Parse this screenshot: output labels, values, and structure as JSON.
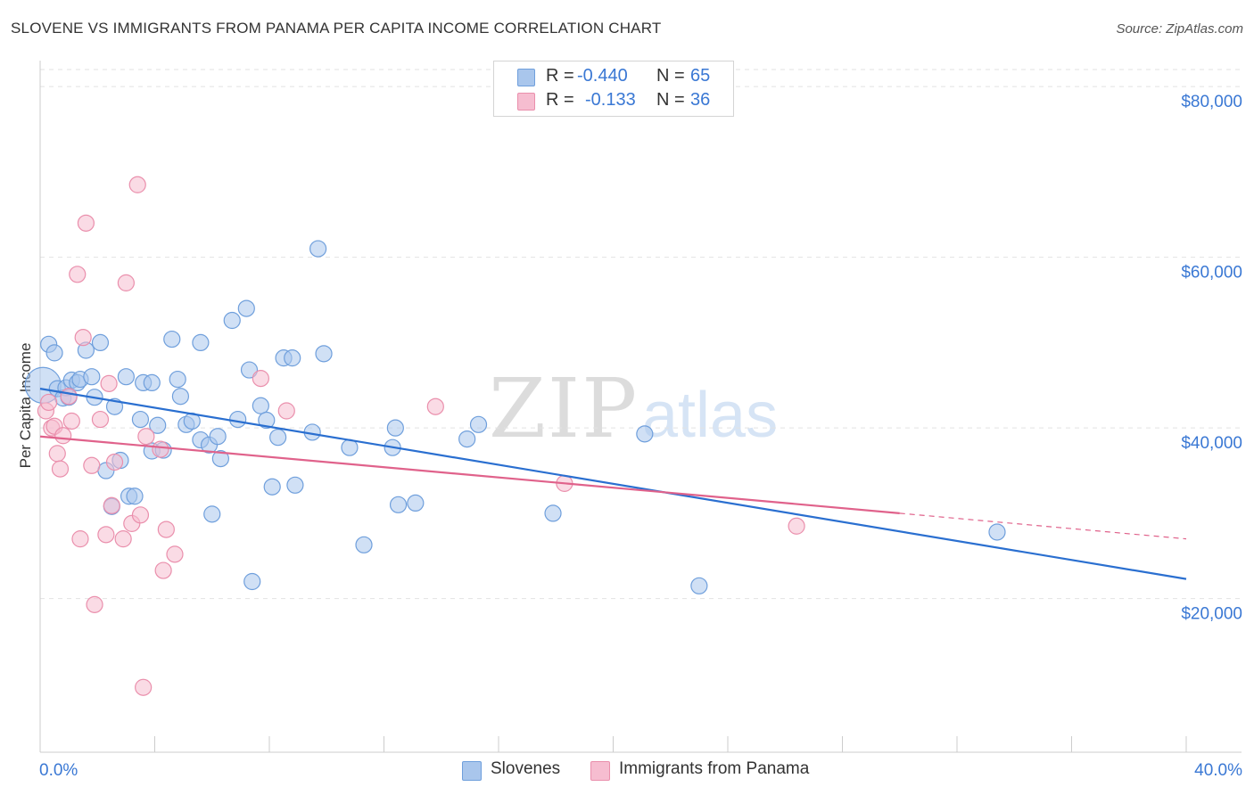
{
  "header": {
    "title": "SLOVENE VS IMMIGRANTS FROM PANAMA PER CAPITA INCOME CORRELATION CHART",
    "source": "Source: ZipAtlas.com"
  },
  "watermark": {
    "zip": "ZIP",
    "atlas": "atlas"
  },
  "legend": {
    "rows": [
      {
        "r_label": "R =",
        "r_value": "-0.440",
        "n_label": "N =",
        "n_value": "65"
      },
      {
        "r_label": "R =",
        "r_value": "-0.133",
        "n_label": "N =",
        "n_value": "36"
      }
    ]
  },
  "bottom_legend": {
    "items": [
      {
        "label": "Slovenes"
      },
      {
        "label": "Immigrants from Panama"
      }
    ]
  },
  "colors": {
    "blue_fill": "#a9c6ec",
    "blue_stroke": "#6f9fdc",
    "blue_line": "#2a6fd0",
    "pink_fill": "#f6bdd0",
    "pink_stroke": "#ea8fac",
    "pink_line": "#e0628b",
    "tick_label": "#3a78d4",
    "grid": "#e2e2e2"
  },
  "chart_data": {
    "type": "scatter",
    "title": "SLOVENE VS IMMIGRANTS FROM PANAMA PER CAPITA INCOME CORRELATION CHART",
    "xlabel": "",
    "ylabel": "Per Capita Income",
    "xlim": [
      0,
      40
    ],
    "ylim": [
      2000,
      82000
    ],
    "x_tick_labels": [
      "0.0%",
      "40.0%"
    ],
    "y_ticks": [
      {
        "value": 20000,
        "label": "$20,000"
      },
      {
        "value": 40000,
        "label": "$40,000"
      },
      {
        "value": 60000,
        "label": "$60,000"
      },
      {
        "value": 80000,
        "label": "$80,000"
      }
    ],
    "grid": true,
    "legend_position": "top-center",
    "series": [
      {
        "name": "Slovenes",
        "R": -0.44,
        "N": 65,
        "trend": {
          "x0": 0,
          "y0": 44600,
          "x1": 40,
          "y1": 22300
        },
        "points": [
          [
            0.1,
            45000
          ],
          [
            0.3,
            49800
          ],
          [
            0.5,
            48800
          ],
          [
            0.6,
            44600
          ],
          [
            0.8,
            43500
          ],
          [
            0.9,
            44700
          ],
          [
            1.1,
            45600
          ],
          [
            1.3,
            45300
          ],
          [
            1.4,
            45700
          ],
          [
            1.6,
            49100
          ],
          [
            1.8,
            46000
          ],
          [
            1.9,
            43600
          ],
          [
            2.1,
            50000
          ],
          [
            2.3,
            35000
          ],
          [
            2.6,
            42500
          ],
          [
            2.8,
            36200
          ],
          [
            3.0,
            46000
          ],
          [
            3.1,
            32000
          ],
          [
            3.3,
            32000
          ],
          [
            3.5,
            41000
          ],
          [
            3.6,
            45300
          ],
          [
            3.9,
            45300
          ],
          [
            3.9,
            37300
          ],
          [
            4.1,
            40300
          ],
          [
            4.3,
            37400
          ],
          [
            4.6,
            50400
          ],
          [
            4.8,
            45700
          ],
          [
            4.9,
            43700
          ],
          [
            5.1,
            40400
          ],
          [
            5.3,
            40800
          ],
          [
            5.6,
            50000
          ],
          [
            5.6,
            38600
          ],
          [
            5.9,
            38000
          ],
          [
            6.0,
            29900
          ],
          [
            6.2,
            39000
          ],
          [
            6.3,
            36400
          ],
          [
            6.7,
            52600
          ],
          [
            6.9,
            41000
          ],
          [
            7.2,
            54000
          ],
          [
            7.3,
            46800
          ],
          [
            7.4,
            22000
          ],
          [
            7.7,
            42600
          ],
          [
            7.9,
            40900
          ],
          [
            8.1,
            33100
          ],
          [
            8.3,
            38900
          ],
          [
            8.5,
            48200
          ],
          [
            8.8,
            48200
          ],
          [
            8.9,
            33300
          ],
          [
            9.5,
            39500
          ],
          [
            9.7,
            61000
          ],
          [
            9.9,
            48700
          ],
          [
            10.8,
            37700
          ],
          [
            11.3,
            26300
          ],
          [
            12.3,
            37700
          ],
          [
            12.4,
            40000
          ],
          [
            12.5,
            31000
          ],
          [
            13.1,
            31200
          ],
          [
            14.9,
            38700
          ],
          [
            15.3,
            40400
          ],
          [
            17.9,
            30000
          ],
          [
            21.1,
            39300
          ],
          [
            23.0,
            21500
          ],
          [
            33.4,
            27800
          ],
          [
            2.5,
            30800
          ],
          [
            1.0,
            43600
          ]
        ]
      },
      {
        "name": "Immigrants from Panama",
        "R": -0.133,
        "N": 36,
        "trend": {
          "x0": 0,
          "y0": 39000,
          "x1": 30,
          "y1": 30000,
          "dash_x1": 40,
          "dash_y1": 27000
        },
        "points": [
          [
            0.2,
            42000
          ],
          [
            0.3,
            43000
          ],
          [
            0.4,
            40000
          ],
          [
            0.5,
            40200
          ],
          [
            0.6,
            37000
          ],
          [
            0.7,
            35200
          ],
          [
            0.8,
            39100
          ],
          [
            1.0,
            43700
          ],
          [
            1.1,
            40800
          ],
          [
            1.3,
            58000
          ],
          [
            1.4,
            27000
          ],
          [
            1.5,
            50600
          ],
          [
            1.6,
            64000
          ],
          [
            1.8,
            35600
          ],
          [
            1.9,
            19300
          ],
          [
            2.1,
            41000
          ],
          [
            2.3,
            27500
          ],
          [
            2.4,
            45200
          ],
          [
            2.5,
            30900
          ],
          [
            2.6,
            36000
          ],
          [
            2.9,
            27000
          ],
          [
            3.0,
            57000
          ],
          [
            3.2,
            28800
          ],
          [
            3.4,
            68500
          ],
          [
            3.5,
            29800
          ],
          [
            3.6,
            9600
          ],
          [
            3.7,
            39000
          ],
          [
            4.2,
            37500
          ],
          [
            4.3,
            23300
          ],
          [
            4.4,
            28100
          ],
          [
            4.7,
            25200
          ],
          [
            7.7,
            45800
          ],
          [
            8.6,
            42000
          ],
          [
            13.8,
            42500
          ],
          [
            18.3,
            33500
          ],
          [
            26.4,
            28500
          ]
        ]
      }
    ]
  }
}
